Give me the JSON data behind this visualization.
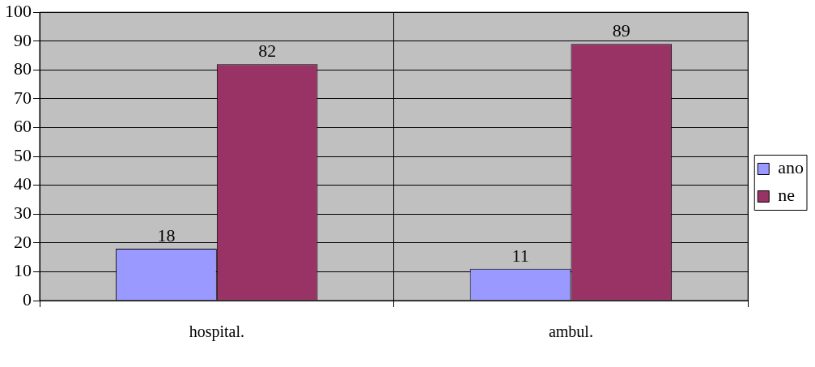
{
  "chart_data": {
    "type": "bar",
    "categories": [
      "hospital.",
      "ambul."
    ],
    "series": [
      {
        "name": "ano",
        "color": "#9999ff",
        "values": [
          18,
          11
        ]
      },
      {
        "name": "ne",
        "color": "#993366",
        "values": [
          82,
          89
        ]
      }
    ],
    "ylim": [
      0,
      100
    ],
    "yticks": [
      0,
      10,
      20,
      30,
      40,
      50,
      60,
      70,
      80,
      90,
      100
    ],
    "grid": true,
    "legend": "right",
    "data_labels": true
  }
}
